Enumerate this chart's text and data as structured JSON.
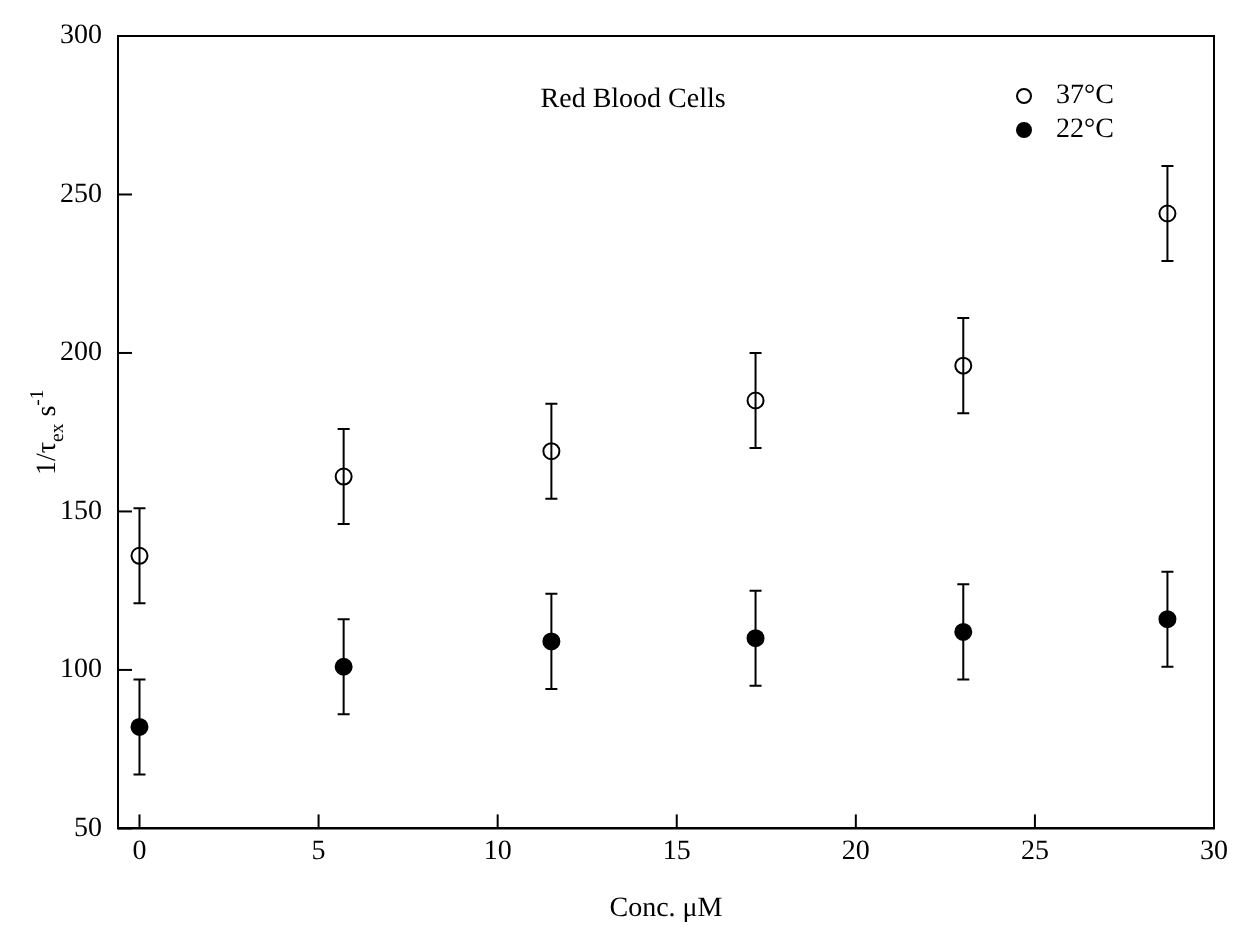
{
  "chart_data": {
    "type": "scatter",
    "title": "Red Blood Cells",
    "xlabel": "Conc. μM",
    "ylabel": "1/τ$_{ex}$ s$^{-1}$",
    "xlim": [
      -0.6,
      30
    ],
    "xticks": [
      0,
      5,
      10,
      15,
      20,
      25,
      30
    ],
    "ylim": [
      50,
      300
    ],
    "yticks": [
      50,
      100,
      150,
      200,
      250,
      300
    ],
    "grid": false,
    "legend": "top right",
    "series": [
      {
        "name": "37°C",
        "color": "#000000",
        "marker": "circle",
        "x": [
          0,
          5.7,
          11.5,
          17.2,
          23,
          28.7
        ],
        "values": [
          136,
          161,
          169,
          185,
          196,
          244
        ],
        "errors": [
          15,
          15,
          15,
          15,
          15,
          15
        ]
      },
      {
        "name": "22°C",
        "color": "#000000",
        "marker": "circle",
        "x": [
          0,
          5.7,
          11.5,
          17.2,
          23,
          28.7
        ],
        "values": [
          82,
          101,
          109,
          110,
          112,
          116
        ],
        "errors": [
          15,
          15,
          15,
          15,
          15,
          15
        ]
      }
    ]
  }
}
